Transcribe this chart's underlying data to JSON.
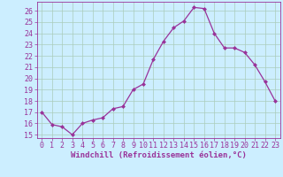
{
  "x": [
    0,
    1,
    2,
    3,
    4,
    5,
    6,
    7,
    8,
    9,
    10,
    11,
    12,
    13,
    14,
    15,
    16,
    17,
    18,
    19,
    20,
    21,
    22,
    23
  ],
  "y": [
    17.0,
    15.9,
    15.7,
    15.0,
    16.0,
    16.3,
    16.5,
    17.3,
    17.5,
    19.0,
    19.5,
    21.7,
    23.3,
    24.5,
    25.1,
    26.3,
    26.2,
    24.0,
    22.7,
    22.7,
    22.3,
    21.2,
    19.7,
    18.0
  ],
  "line_color": "#993399",
  "marker_color": "#993399",
  "bg_color": "#cceeff",
  "grid_color": "#aaccbb",
  "xlabel": "Windchill (Refroidissement éolien,°C)",
  "ylabel": "",
  "title": "",
  "ylim_min": 14.7,
  "ylim_max": 26.8,
  "yticks": [
    15,
    16,
    17,
    18,
    19,
    20,
    21,
    22,
    23,
    24,
    25,
    26
  ],
  "xticks": [
    0,
    1,
    2,
    3,
    4,
    5,
    6,
    7,
    8,
    9,
    10,
    11,
    12,
    13,
    14,
    15,
    16,
    17,
    18,
    19,
    20,
    21,
    22,
    23
  ],
  "font_color": "#993399",
  "axis_color": "#993399",
  "tick_fontsize": 6.0,
  "xlabel_fontsize": 6.5
}
